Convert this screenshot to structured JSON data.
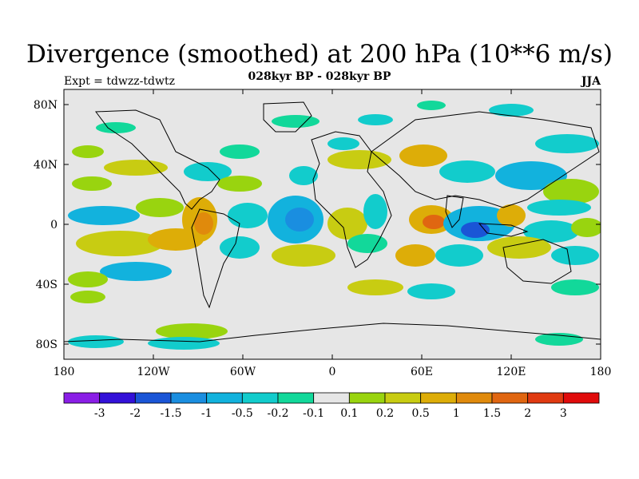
{
  "title": "Divergence (smoothed) at 200 hPa (10**6 m/s)",
  "subtitle": "028kyr BP - 028kyr BP",
  "experiment": "Expt = tdwzz-tdwtz",
  "season": "JJA",
  "lat_labels": [
    "80N",
    "40N",
    "0",
    "40S",
    "80S"
  ],
  "lon_labels": [
    "180",
    "120W",
    "60W",
    "0",
    "60E",
    "120E",
    "180"
  ],
  "colorbar": {
    "labels": [
      "-3",
      "-2",
      "-1.5",
      "-1",
      "-0.5",
      "-0.2",
      "-0.1",
      "0.1",
      "0.2",
      "0.5",
      "1",
      "1.5",
      "2",
      "3"
    ],
    "colors": [
      "#8a1ee6",
      "#3311d8",
      "#1a55d6",
      "#1a8ee0",
      "#12b2dd",
      "#12cccc",
      "#12d89a",
      "#e6e6e6",
      "#99d40f",
      "#c8cc12",
      "#ddad08",
      "#e08a0c",
      "#e06611",
      "#e03a11",
      "#e00b0b"
    ]
  }
}
